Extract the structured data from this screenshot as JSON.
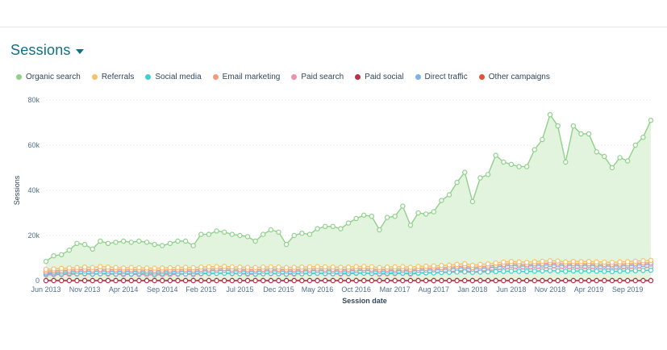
{
  "header": {
    "title": "Sessions"
  },
  "legend": [
    {
      "label": "Organic search",
      "color": "#8fd18a"
    },
    {
      "label": "Referrals",
      "color": "#f5c26b"
    },
    {
      "label": "Social media",
      "color": "#3fd0cf"
    },
    {
      "label": "Email marketing",
      "color": "#f29b7c"
    },
    {
      "label": "Paid search",
      "color": "#ea90b1"
    },
    {
      "label": "Paid social",
      "color": "#b5334c"
    },
    {
      "label": "Direct traffic",
      "color": "#7fb3e8"
    },
    {
      "label": "Other campaigns",
      "color": "#d9563b"
    }
  ],
  "chart_data": {
    "type": "area",
    "xlabel": "Session date",
    "ylabel": "Sessions",
    "ylim": [
      0,
      80000
    ],
    "yticks": [
      0,
      20000,
      40000,
      60000,
      80000
    ],
    "ytick_labels": [
      "0",
      "20k",
      "40k",
      "60k",
      "80k"
    ],
    "xtick_labels": [
      "Jun 2013",
      "Nov 2013",
      "Apr 2014",
      "Sep 2014",
      "Feb 2015",
      "Jul 2015",
      "Dec 2015",
      "May 2016",
      "Oct 2016",
      "Mar 2017",
      "Aug 2017",
      "Jan 2018",
      "Jun 2018",
      "Nov 2018",
      "Apr 2019",
      "Sep 2019"
    ],
    "grid": true,
    "series": [
      {
        "name": "Organic search",
        "color": "#8fd18a",
        "fill": "#e3f4de",
        "values": [
          8500,
          11000,
          11500,
          13500,
          16500,
          16000,
          14000,
          17500,
          16500,
          17000,
          17500,
          17000,
          17500,
          17000,
          16000,
          15500,
          16500,
          17500,
          17500,
          15500,
          20500,
          20500,
          22000,
          21500,
          20500,
          20000,
          19500,
          17500,
          20500,
          22500,
          21500,
          16000,
          20000,
          21000,
          20500,
          23000,
          24000,
          24000,
          23000,
          25500,
          27500,
          29000,
          28500,
          22500,
          28000,
          28500,
          33000,
          24500,
          30000,
          29500,
          30500,
          35500,
          38000,
          43500,
          48000,
          35000,
          45500,
          47000,
          55500,
          52500,
          51500,
          50500,
          50500,
          58000,
          62500,
          73500,
          68500,
          52500,
          68500,
          65000,
          65000,
          57000,
          55000,
          50000,
          54500,
          53000,
          60000,
          63500,
          71000
        ]
      },
      {
        "name": "Referrals",
        "color": "#f5c26b",
        "values": [
          5000,
          5200,
          5400,
          5600,
          5800,
          6000,
          5800,
          6200,
          6000,
          5800,
          5600,
          5800,
          5700,
          5600,
          5500,
          5600,
          5700,
          5800,
          5900,
          5700,
          6000,
          6100,
          6200,
          6300,
          6100,
          6000,
          5900,
          5800,
          6000,
          6100,
          6000,
          5800,
          5900,
          6000,
          6100,
          6200,
          6100,
          6000,
          5900,
          6000,
          6200,
          6300,
          6100,
          5800,
          6000,
          6100,
          6200,
          5900,
          6300,
          6400,
          6500,
          6700,
          6900,
          7200,
          7500,
          6800,
          7200,
          7400,
          7800,
          8200,
          8500,
          8300,
          8100,
          8400,
          8600,
          8800,
          8700,
          8300,
          8500,
          8400,
          8500,
          8300,
          8200,
          8100,
          8300,
          8400,
          8600,
          8800,
          9000
        ]
      },
      {
        "name": "Social media",
        "color": "#3fd0cf",
        "values": [
          3000,
          3100,
          3000,
          3200,
          3100,
          3200,
          3000,
          3100,
          3200,
          3000,
          3100,
          3000,
          3100,
          3200,
          3000,
          3100,
          3200,
          3100,
          3000,
          3100,
          3200,
          3300,
          3200,
          3300,
          3200,
          3100,
          3200,
          3000,
          3100,
          3200,
          3100,
          3000,
          3200,
          3100,
          3200,
          3300,
          3200,
          3100,
          3200,
          3300,
          3400,
          3300,
          3200,
          3100,
          3300,
          3400,
          3300,
          3200,
          3400,
          3500,
          3400,
          3600,
          3700,
          3800,
          3900,
          3700,
          3800,
          3900,
          4000,
          4100,
          4200,
          4100,
          4000,
          4200,
          4300,
          4400,
          4300,
          4100,
          4300,
          4200,
          4300,
          4200,
          4100,
          4000,
          4200,
          4300,
          4400,
          4500,
          4600
        ]
      },
      {
        "name": "Email marketing",
        "color": "#f29b7c",
        "values": [
          4200,
          4400,
          4500,
          4600,
          4800,
          5000,
          4700,
          5000,
          4900,
          4800,
          4700,
          4800,
          4700,
          4600,
          4500,
          4600,
          4700,
          4800,
          4900,
          4700,
          5000,
          5100,
          5200,
          5300,
          5100,
          5000,
          4900,
          4800,
          5000,
          5100,
          5000,
          4800,
          4900,
          5000,
          5100,
          5200,
          5100,
          5000,
          4900,
          5000,
          5200,
          5300,
          5100,
          4800,
          5000,
          5100,
          5200,
          4900,
          5300,
          5400,
          5500,
          5700,
          5900,
          6200,
          6500,
          5800,
          6200,
          6400,
          6800,
          7200,
          7500,
          7300,
          7100,
          7400,
          7600,
          7800,
          7700,
          7300,
          7500,
          7400,
          7500,
          7300,
          7200,
          7100,
          7300,
          7400,
          7600,
          7800,
          8000
        ]
      },
      {
        "name": "Paid search",
        "color": "#ea90b1",
        "values": [
          2500,
          2600,
          2700,
          2800,
          2900,
          3000,
          2800,
          3000,
          2900,
          2800,
          2700,
          2800,
          2700,
          2600,
          2500,
          2600,
          2700,
          2800,
          2900,
          2700,
          3000,
          3100,
          3200,
          3300,
          3100,
          3000,
          2900,
          2800,
          3000,
          3100,
          3000,
          2800,
          2900,
          3000,
          3100,
          3200,
          3100,
          3000,
          2900,
          3000,
          3200,
          3300,
          3100,
          2800,
          3000,
          3100,
          3200,
          2900,
          3300,
          3400,
          3500,
          3700,
          3900,
          4200,
          4500,
          3800,
          4200,
          4400,
          4800,
          5200,
          5500,
          5300,
          5100,
          5400,
          5600,
          5800,
          5700,
          5300,
          5500,
          5400,
          5500,
          5300,
          5200,
          5100,
          5300,
          5400,
          5600,
          5800,
          6000
        ]
      },
      {
        "name": "Paid social",
        "color": "#b5334c",
        "values": [
          0,
          0,
          0,
          0,
          0,
          0,
          0,
          0,
          0,
          0,
          0,
          0,
          0,
          0,
          0,
          0,
          0,
          0,
          0,
          0,
          0,
          0,
          0,
          0,
          0,
          0,
          0,
          0,
          0,
          0,
          0,
          0,
          0,
          0,
          0,
          0,
          0,
          0,
          0,
          0,
          0,
          0,
          0,
          0,
          0,
          0,
          0,
          0,
          0,
          0,
          0,
          0,
          0,
          0,
          0,
          0,
          0,
          0,
          0,
          0,
          0,
          0,
          0,
          0,
          0,
          0,
          0,
          0,
          0,
          0,
          0,
          0,
          0,
          0,
          0,
          0,
          0,
          0,
          0
        ]
      },
      {
        "name": "Direct traffic",
        "color": "#7fb3e8",
        "values": [
          3500,
          3700,
          3800,
          3900,
          4100,
          4300,
          4000,
          4300,
          4200,
          4100,
          4000,
          4100,
          4000,
          3900,
          3800,
          3900,
          4000,
          4100,
          4200,
          4000,
          4300,
          4400,
          4500,
          4600,
          4400,
          4300,
          4200,
          4100,
          4300,
          4400,
          4300,
          4100,
          4200,
          4300,
          4400,
          4500,
          4400,
          4300,
          4200,
          4300,
          4500,
          4600,
          4400,
          4100,
          4300,
          4400,
          4500,
          4200,
          4600,
          4700,
          4800,
          5000,
          5200,
          5500,
          5800,
          5100,
          5500,
          5700,
          6100,
          6500,
          6800,
          6600,
          6400,
          6700,
          6900,
          7100,
          7000,
          6600,
          6800,
          6700,
          6800,
          6600,
          6500,
          6400,
          6600,
          6700,
          6900,
          7100,
          7300
        ]
      },
      {
        "name": "Other campaigns",
        "color": "#d9563b",
        "values": [
          100,
          100,
          100,
          100,
          100,
          100,
          100,
          100,
          100,
          100,
          100,
          100,
          100,
          100,
          100,
          100,
          100,
          100,
          100,
          100,
          100,
          100,
          100,
          100,
          100,
          100,
          100,
          100,
          100,
          100,
          100,
          100,
          100,
          100,
          100,
          100,
          100,
          100,
          100,
          100,
          100,
          100,
          100,
          100,
          100,
          100,
          100,
          100,
          100,
          100,
          100,
          100,
          100,
          100,
          100,
          100,
          100,
          100,
          100,
          100,
          100,
          100,
          100,
          100,
          100,
          100,
          100,
          100,
          100,
          100,
          100,
          100,
          100,
          100,
          100,
          100,
          100,
          100,
          100
        ]
      }
    ]
  }
}
